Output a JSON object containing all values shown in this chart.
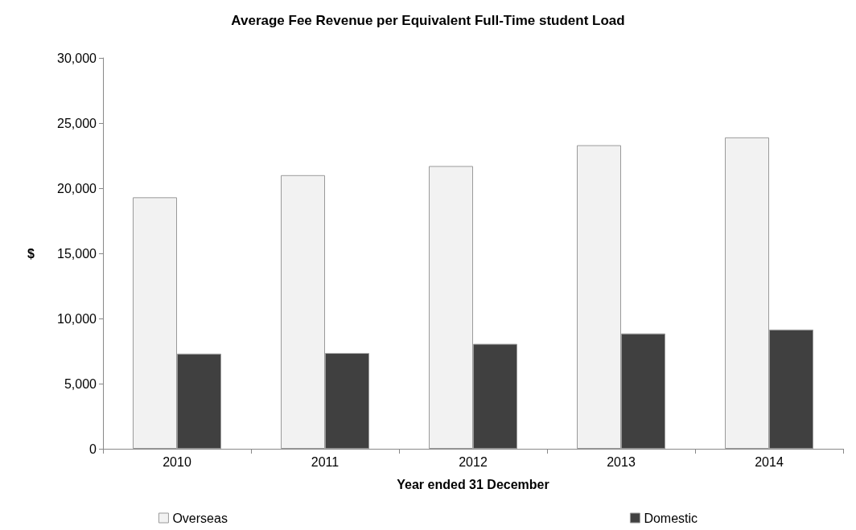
{
  "chart_data": {
    "type": "bar",
    "title": "Average Fee Revenue per Equivalent Full-Time student Load",
    "xlabel": "Year ended 31 December",
    "ylabel": "$",
    "categories": [
      "2010",
      "2011",
      "2012",
      "2013",
      "2014"
    ],
    "series": [
      {
        "name": "Overseas",
        "color": "#f2f2f2",
        "values": [
          19300,
          21000,
          21700,
          23300,
          23900
        ]
      },
      {
        "name": "Domestic",
        "color": "#404040",
        "values": [
          7300,
          7350,
          8050,
          8850,
          9150
        ]
      }
    ],
    "ylim": [
      0,
      30000
    ],
    "yticks": [
      0,
      {
        "value": 5000,
        "label": "5,000"
      },
      {
        "value": 10000,
        "label": "10,000"
      },
      {
        "value": 15000,
        "label": "15,000"
      },
      {
        "value": 20000,
        "label": "20,000"
      },
      {
        "value": 25000,
        "label": "25,000"
      },
      {
        "value": 30000,
        "label": "30,000"
      }
    ],
    "grid": false,
    "legend": "bottom"
  }
}
